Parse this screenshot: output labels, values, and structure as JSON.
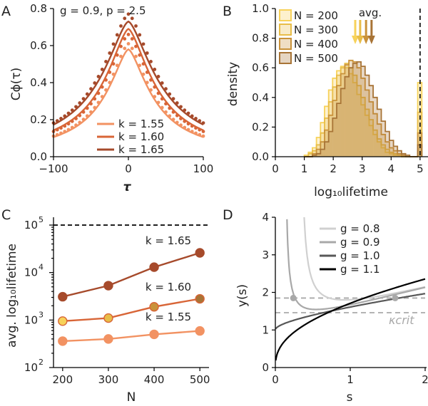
{
  "colors": {
    "k155": "#f29262",
    "k160": "#d86537",
    "k165": "#a64a2b",
    "n200": "#f7d25a",
    "n300": "#e8bd48",
    "n400": "#c9923a",
    "n500": "#a87436",
    "g08": "#d0d0d0",
    "g09": "#a8a8a8",
    "g10": "#575757",
    "g11": "#000000",
    "dashgray": "#a9a9a9"
  },
  "chart_data": [
    {
      "panel": "A",
      "type": "line",
      "annotation": "g = 0.9, p = 2.5",
      "xlabel": "τ",
      "ylabel": "Cϕ(τ)",
      "xlim": [
        -100,
        100
      ],
      "ylim": [
        0,
        0.8
      ],
      "xticks": [
        "−100",
        "0",
        "100"
      ],
      "yticks": [
        "0.0",
        "0.2",
        "0.4",
        "0.6",
        "0.8"
      ],
      "legend": "bottom-center",
      "series": [
        {
          "name": "k = 1.55",
          "color_key": "k155",
          "peak": 0.58,
          "dots_peak": 0.61,
          "width": 38
        },
        {
          "name": "k = 1.60",
          "color_key": "k160",
          "peak": 0.69,
          "dots_peak": 0.66,
          "width": 42
        },
        {
          "name": "k = 1.65",
          "color_key": "k165",
          "peak": 0.73,
          "dots_peak": 0.77,
          "width": 47
        }
      ]
    },
    {
      "panel": "B",
      "type": "bar",
      "xlabel": "log₁₀lifetime",
      "ylabel": "density",
      "xlim": [
        0,
        5.2
      ],
      "ylim": [
        0,
        1.0
      ],
      "xticks": [
        "0",
        "1",
        "2",
        "3",
        "4",
        "5"
      ],
      "yticks": [
        "0.0",
        "0.2",
        "0.4",
        "0.6",
        "0.8",
        "1.0"
      ],
      "vline": 5,
      "avg_label": "avg.",
      "avg_values": [
        3.0,
        3.05,
        3.27,
        3.42
      ],
      "legend": "top-left",
      "bin_start": 1.0,
      "bin_width": 0.14,
      "series": [
        {
          "name": "N = 200",
          "color_key": "n200",
          "values": [
            0.01,
            0.03,
            0.06,
            0.13,
            0.23,
            0.34,
            0.45,
            0.53,
            0.58,
            0.61,
            0.6,
            0.56,
            0.5,
            0.42,
            0.35,
            0.28,
            0.21,
            0.15,
            0.1,
            0.06,
            0.03,
            0.02,
            0.01,
            0.01,
            0.0,
            0.0,
            0.0,
            0.0,
            0.5
          ]
        },
        {
          "name": "N = 300",
          "color_key": "n300",
          "values": [
            0.0,
            0.02,
            0.04,
            0.08,
            0.16,
            0.26,
            0.37,
            0.47,
            0.55,
            0.6,
            0.63,
            0.6,
            0.55,
            0.48,
            0.4,
            0.32,
            0.25,
            0.18,
            0.12,
            0.08,
            0.05,
            0.03,
            0.02,
            0.01,
            0.0,
            0.0,
            0.0,
            0.0,
            0.3
          ]
        },
        {
          "name": "N = 400",
          "color_key": "n400",
          "values": [
            0.0,
            0.0,
            0.02,
            0.05,
            0.1,
            0.18,
            0.28,
            0.38,
            0.48,
            0.56,
            0.62,
            0.65,
            0.64,
            0.6,
            0.53,
            0.45,
            0.37,
            0.29,
            0.22,
            0.15,
            0.1,
            0.06,
            0.04,
            0.02,
            0.01,
            0.0,
            0.0,
            0.0,
            0.16
          ]
        },
        {
          "name": "N = 500",
          "color_key": "n500",
          "values": [
            0.0,
            0.0,
            0.01,
            0.02,
            0.05,
            0.1,
            0.17,
            0.26,
            0.36,
            0.46,
            0.54,
            0.6,
            0.63,
            0.64,
            0.61,
            0.55,
            0.48,
            0.4,
            0.32,
            0.24,
            0.17,
            0.11,
            0.07,
            0.04,
            0.02,
            0.01,
            0.0,
            0.0,
            0.08
          ]
        }
      ]
    },
    {
      "panel": "C",
      "type": "line",
      "xlabel": "N",
      "ylabel": "avg. log₁₀lifetime",
      "yscale": "log",
      "xlim": [
        180,
        520
      ],
      "ylim": [
        100,
        100000
      ],
      "xticks": [
        "200",
        "300",
        "400",
        "500"
      ],
      "x": [
        200,
        300,
        400,
        500
      ],
      "hline": 100000,
      "series": [
        {
          "name": "k = 1.55",
          "color_key": "k155",
          "values": [
            360,
            400,
            500,
            590
          ]
        },
        {
          "name": "k = 1.60",
          "color_key": "k160",
          "values": [
            950,
            1100,
            1900,
            2800
          ]
        },
        {
          "name": "k = 1.65",
          "color_key": "k165",
          "values": [
            3100,
            5300,
            13000,
            26000
          ]
        }
      ]
    },
    {
      "panel": "D",
      "type": "line",
      "xlabel": "s",
      "ylabel": "y(s)",
      "xlim": [
        0,
        2
      ],
      "ylim": [
        0,
        4
      ],
      "xticks": [
        "0",
        "1",
        "2"
      ],
      "yticks": [
        "0",
        "1",
        "2",
        "3",
        "4"
      ],
      "kcrit_label": "κcrit",
      "hlines": [
        1.85,
        1.46
      ],
      "legend": "top-right",
      "series": [
        {
          "name": "g = 0.8",
          "color_key": "g08",
          "g": 0.8
        },
        {
          "name": "g = 0.9",
          "color_key": "g09",
          "g": 0.9
        },
        {
          "name": "g = 1.0",
          "color_key": "g10",
          "g": 1.0
        },
        {
          "name": "g = 1.1",
          "color_key": "g11",
          "g": 1.1
        }
      ]
    }
  ],
  "panels": {
    "A": "A",
    "B": "B",
    "C": "C",
    "D": "D"
  }
}
